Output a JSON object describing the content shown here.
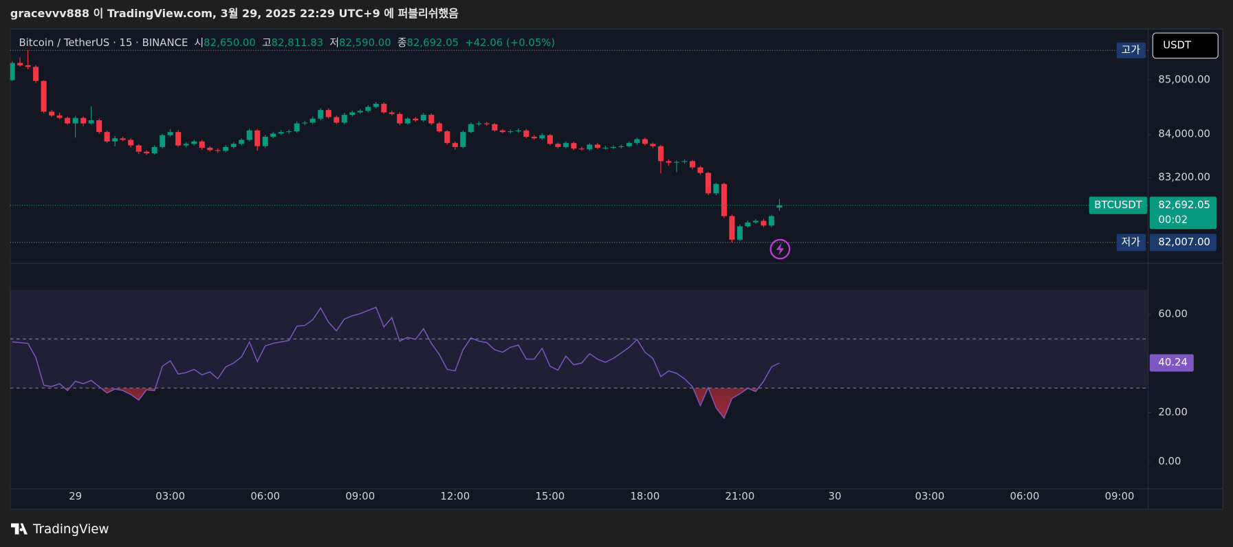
{
  "header": {
    "publish_note": "gracevvv888 이 TradingView.com, 3월 29, 2025 22:29 UTC+9 에 퍼블리쉬했음"
  },
  "chart_data": [
    {
      "type": "candlestick",
      "legend": {
        "symbol": "Bitcoin / TetherUS · 15 · BINANCE",
        "ohlc": [
          {
            "key": "시",
            "value": "82,650.00"
          },
          {
            "key": "고",
            "value": "82,811.83"
          },
          {
            "key": "저",
            "value": "82,590.00"
          },
          {
            "key": "종",
            "value": "82,692.05"
          }
        ],
        "change": "+42.06 (+0.05%)"
      },
      "currency": "USDT",
      "up_color": "#089981",
      "down_color": "#f23645",
      "x": [
        -2,
        -1.75,
        -1.5,
        -1.25,
        -1,
        -0.75,
        -0.5,
        -0.25,
        0,
        0.25,
        0.5,
        0.75,
        1,
        1.25,
        1.5,
        1.75,
        2,
        2.25,
        2.5,
        2.75,
        3,
        3.25,
        3.5,
        3.75,
        4,
        4.25,
        4.5,
        4.75,
        5,
        5.25,
        5.5,
        5.75,
        6,
        6.25,
        6.5,
        6.75,
        7,
        7.25,
        7.5,
        7.75,
        8,
        8.25,
        8.5,
        8.75,
        9,
        9.25,
        9.5,
        9.75,
        10,
        10.25,
        10.5,
        10.75,
        11,
        11.25,
        11.5,
        11.75,
        12,
        12.25,
        12.5,
        12.75,
        13,
        13.25,
        13.5,
        13.75,
        14,
        14.25,
        14.5,
        14.75,
        15,
        15.25,
        15.5,
        15.75,
        16,
        16.25,
        16.5,
        16.75,
        17,
        17.25,
        17.5,
        17.75,
        18,
        18.25,
        18.5,
        18.75,
        19,
        19.25,
        19.5,
        19.75,
        20,
        20.25,
        20.5,
        20.75,
        21,
        21.25,
        21.5,
        21.75,
        22,
        22.25
      ],
      "open": [
        85000,
        85319,
        85275,
        85246,
        84986,
        84420,
        84348,
        84304,
        84203,
        84304,
        84203,
        84261,
        84044,
        83870,
        83928,
        83899,
        83797,
        83681,
        83652,
        83768,
        83986,
        84044,
        83797,
        83826,
        83870,
        83754,
        83710,
        83696,
        83768,
        83826,
        83899,
        84073,
        83783,
        83957,
        84015,
        84044,
        84058,
        84203,
        84217,
        84290,
        84449,
        84319,
        84217,
        84362,
        84406,
        84435,
        84507,
        84565,
        84406,
        84377,
        84203,
        84290,
        84261,
        84362,
        84203,
        84058,
        83841,
        83768,
        84044,
        84189,
        84203,
        84189,
        84073,
        84044,
        84058,
        84073,
        83957,
        83928,
        83986,
        83826,
        83768,
        83841,
        83739,
        83725,
        83812,
        83754,
        83754,
        83768,
        83783,
        83841,
        83913,
        83826,
        83783,
        83507,
        83479,
        83493,
        83507,
        83392,
        83290,
        82913,
        83087,
        82493,
        82058,
        82305,
        82377,
        82406,
        82319,
        82650
      ],
      "high": [
        85350,
        85420,
        85550,
        85280,
        85000,
        84450,
        84400,
        84330,
        84340,
        84330,
        84520,
        84290,
        84070,
        83970,
        83960,
        83930,
        83820,
        83710,
        83800,
        84010,
        84100,
        84080,
        83860,
        83900,
        83900,
        83780,
        83740,
        83800,
        83860,
        83930,
        84110,
        84100,
        83990,
        84050,
        84080,
        84090,
        84240,
        84250,
        84330,
        84480,
        84480,
        84350,
        84400,
        84440,
        84470,
        84540,
        84600,
        84590,
        84440,
        84410,
        84320,
        84320,
        84400,
        84390,
        84230,
        84080,
        83870,
        84070,
        84220,
        84240,
        84230,
        84210,
        84100,
        84090,
        84110,
        84100,
        83990,
        84020,
        84010,
        83850,
        83870,
        83870,
        83770,
        83840,
        83840,
        83790,
        83800,
        83810,
        83870,
        83940,
        83940,
        83850,
        83810,
        83540,
        83520,
        83540,
        83530,
        83420,
        83310,
        83110,
        83110,
        82520,
        82340,
        82410,
        82440,
        82440,
        82520,
        82811.83
      ],
      "low": [
        84980,
        85250,
        85200,
        84950,
        84390,
        84320,
        84280,
        84180,
        83940,
        84150,
        84180,
        84010,
        83840,
        83780,
        83870,
        83760,
        83640,
        83620,
        83630,
        83740,
        83960,
        83770,
        83760,
        83800,
        83720,
        83680,
        83660,
        83670,
        83740,
        83800,
        83870,
        83700,
        83750,
        83930,
        83990,
        84010,
        84030,
        84170,
        84190,
        84260,
        84290,
        84190,
        84190,
        84330,
        84380,
        84410,
        84480,
        84380,
        84350,
        84170,
        84180,
        84230,
        84230,
        84170,
        84030,
        83810,
        83720,
        83740,
        84020,
        84160,
        84160,
        84050,
        84020,
        84020,
        84030,
        83930,
        83900,
        83900,
        83800,
        83740,
        83740,
        83710,
        83700,
        83700,
        83730,
        83720,
        83730,
        83740,
        83760,
        83810,
        83800,
        83750,
        83280,
        83420,
        83300,
        83460,
        83360,
        83260,
        82880,
        82880,
        82460,
        82007,
        82030,
        82280,
        82350,
        82290,
        82290,
        82590
      ],
      "close": [
        85319,
        85275,
        85246,
        84986,
        84420,
        84348,
        84304,
        84203,
        84304,
        84203,
        84261,
        84044,
        83870,
        83928,
        83899,
        83797,
        83681,
        83652,
        83768,
        83986,
        84044,
        83797,
        83826,
        83870,
        83754,
        83710,
        83696,
        83768,
        83826,
        83899,
        84073,
        83783,
        83957,
        84015,
        84044,
        84058,
        84203,
        84217,
        84290,
        84449,
        84319,
        84217,
        84362,
        84406,
        84435,
        84507,
        84565,
        84406,
        84377,
        84203,
        84290,
        84261,
        84362,
        84203,
        84058,
        83841,
        83768,
        84044,
        84189,
        84203,
        84189,
        84073,
        84044,
        84058,
        84073,
        83957,
        83928,
        83986,
        83826,
        83768,
        83841,
        83739,
        83725,
        83812,
        83754,
        83754,
        83768,
        83783,
        83841,
        83913,
        83826,
        83783,
        83507,
        83479,
        83493,
        83507,
        83392,
        83290,
        82913,
        83087,
        82493,
        82058,
        82305,
        82377,
        82406,
        82319,
        82493,
        82692.05
      ],
      "xlim": [
        -2.06,
        33.9
      ],
      "xticks": [
        {
          "value": 0,
          "label": "29"
        },
        {
          "value": 3,
          "label": "03:00"
        },
        {
          "value": 6,
          "label": "06:00"
        },
        {
          "value": 9,
          "label": "09:00"
        },
        {
          "value": 12,
          "label": "12:00"
        },
        {
          "value": 15,
          "label": "15:00"
        },
        {
          "value": 18,
          "label": "18:00"
        },
        {
          "value": 21,
          "label": "21:00"
        },
        {
          "value": 24,
          "label": "30"
        },
        {
          "value": 27,
          "label": "03:00"
        },
        {
          "value": 30,
          "label": "06:00"
        },
        {
          "value": 33,
          "label": "09:00"
        }
      ],
      "ylim": [
        81652,
        85942
      ],
      "yticks": [
        {
          "value": 85000,
          "label": "85,000.00"
        },
        {
          "value": 84000,
          "label": "84,000.00"
        },
        {
          "value": 83200,
          "label": "83,200.00"
        }
      ],
      "last_price": {
        "symbol": "BTCUSDT",
        "value_label": "82,692.05",
        "countdown": "00:02"
      },
      "high_marker": {
        "label": "고가"
      },
      "low_marker": {
        "label": "저가",
        "value_label": "82,007.00"
      }
    },
    {
      "type": "line",
      "series": [
        {
          "color": "#7e57c2",
          "values": [
            48.8,
            48.5,
            48.2,
            42.4,
            31.2,
            30.6,
            31.8,
            29.0,
            32.8,
            31.8,
            33.1,
            30.6,
            28.0,
            29.6,
            29.0,
            27.4,
            25.1,
            29.3,
            29.0,
            38.9,
            41.1,
            35.7,
            36.3,
            37.6,
            35.4,
            36.6,
            33.8,
            38.6,
            40.2,
            42.7,
            48.8,
            40.8,
            47.2,
            48.2,
            48.8,
            49.4,
            55.2,
            55.5,
            57.8,
            62.6,
            56.8,
            53.3,
            58.1,
            59.4,
            60.3,
            61.6,
            62.9,
            54.9,
            58.7,
            49.1,
            50.7,
            49.8,
            54.2,
            48.2,
            43.7,
            37.6,
            37.0,
            45.6,
            50.4,
            49.1,
            48.5,
            45.6,
            44.6,
            46.6,
            47.5,
            41.8,
            41.8,
            46.2,
            38.9,
            37.3,
            43.0,
            39.5,
            40.2,
            44.0,
            41.8,
            40.5,
            42.1,
            44.3,
            46.6,
            49.8,
            44.6,
            42.1,
            34.7,
            37.0,
            36.0,
            33.8,
            30.6,
            22.9,
            30.2,
            21.9,
            17.8,
            25.8,
            27.7,
            29.9,
            28.6,
            32.8,
            38.6,
            40.24
          ]
        }
      ],
      "ylim": [
        -11,
        79.2
      ],
      "yticks": [
        {
          "value": 60,
          "label": "60.00"
        },
        {
          "value": 20,
          "label": "20.00"
        },
        {
          "value": 0,
          "label": "0.00"
        }
      ],
      "band_fill": [
        70,
        30
      ],
      "band_lines": [
        50,
        30
      ]
    }
  ],
  "footer": {
    "brand": "TradingView"
  }
}
